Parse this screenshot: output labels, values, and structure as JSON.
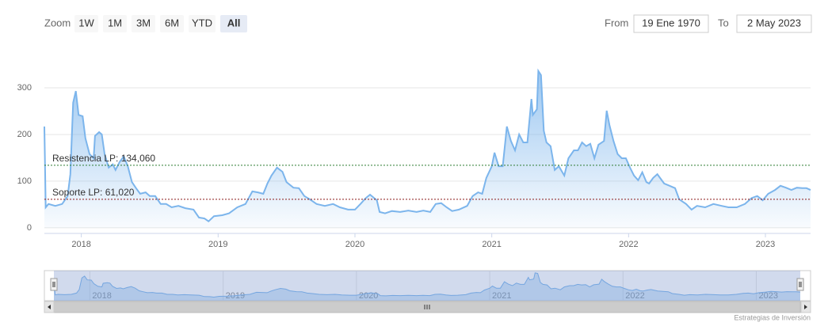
{
  "chart_data": {
    "type": "area",
    "color": "#7cb5ec",
    "range_selector": {
      "zoom_label": "Zoom",
      "buttons": [
        "1W",
        "1M",
        "3M",
        "6M",
        "YTD",
        "All"
      ],
      "selected": "All",
      "from_label": "From",
      "from_value": "19 Ene 1970",
      "to_label": "To",
      "to_value": "2 May 2023"
    },
    "annotations": [
      {
        "text": "Resistencia LP: 134,060",
        "value": 134.06,
        "color": "#2e7d32"
      },
      {
        "text": "Soporte LP: 61,020",
        "value": 61.02,
        "color": "#8b1a1a"
      }
    ],
    "credit": "Estrategias de Inversión",
    "xlim": [
      2017.73,
      2023.33
    ],
    "xticks": [
      2018,
      2019,
      2020,
      2021,
      2022,
      2023
    ],
    "ylim": [
      -12,
      344
    ],
    "yticks": [
      0,
      100,
      200,
      300
    ],
    "grid": true,
    "x": [
      2017.73,
      2017.74,
      2017.76,
      2017.81,
      2017.86,
      2017.9,
      2017.92,
      2017.94,
      2017.96,
      2017.98,
      2018.01,
      2018.03,
      2018.06,
      2018.09,
      2018.1,
      2018.13,
      2018.15,
      2018.17,
      2018.2,
      2018.23,
      2018.25,
      2018.28,
      2018.31,
      2018.34,
      2018.37,
      2018.4,
      2018.43,
      2018.47,
      2018.5,
      2018.54,
      2018.58,
      2018.62,
      2018.66,
      2018.71,
      2018.76,
      2018.82,
      2018.86,
      2018.9,
      2018.93,
      2018.97,
      2019.03,
      2019.08,
      2019.14,
      2019.2,
      2019.25,
      2019.29,
      2019.33,
      2019.36,
      2019.39,
      2019.43,
      2019.47,
      2019.5,
      2019.55,
      2019.59,
      2019.63,
      2019.67,
      2019.72,
      2019.78,
      2019.84,
      2019.89,
      2019.95,
      2020.0,
      2020.04,
      2020.08,
      2020.11,
      2020.16,
      2020.18,
      2020.22,
      2020.27,
      2020.33,
      2020.39,
      2020.45,
      2020.5,
      2020.55,
      2020.59,
      2020.63,
      2020.67,
      2020.71,
      2020.76,
      2020.82,
      2020.86,
      2020.9,
      2020.93,
      2020.96,
      2021.0,
      2021.02,
      2021.05,
      2021.08,
      2021.11,
      2021.14,
      2021.17,
      2021.2,
      2021.23,
      2021.26,
      2021.29,
      2021.3,
      2021.33,
      2021.34,
      2021.36,
      2021.38,
      2021.4,
      2021.43,
      2021.46,
      2021.49,
      2021.53,
      2021.56,
      2021.6,
      2021.63,
      2021.66,
      2021.69,
      2021.72,
      2021.75,
      2021.78,
      2021.82,
      2021.84,
      2021.86,
      2021.89,
      2021.92,
      2021.95,
      2021.98,
      2022.01,
      2022.04,
      2022.07,
      2022.1,
      2022.13,
      2022.15,
      2022.18,
      2022.21,
      2022.26,
      2022.3,
      2022.34,
      2022.37,
      2022.42,
      2022.46,
      2022.5,
      2022.56,
      2022.62,
      2022.68,
      2022.73,
      2022.79,
      2022.85,
      2022.9,
      2022.94,
      2022.98,
      2023.02,
      2023.07,
      2023.11,
      2023.15,
      2023.19,
      2023.23,
      2023.27,
      2023.3,
      2023.33
    ],
    "values": [
      217,
      44,
      51,
      47,
      51,
      68,
      115,
      268,
      293,
      242,
      239,
      192,
      158,
      149,
      197,
      205,
      200,
      158,
      129,
      136,
      124,
      141,
      153,
      132,
      98,
      85,
      73,
      76,
      68,
      68,
      51,
      51,
      44,
      47,
      42,
      39,
      22,
      20,
      14,
      25,
      27,
      31,
      44,
      51,
      78,
      76,
      73,
      95,
      112,
      129,
      120,
      98,
      86,
      85,
      68,
      61,
      51,
      47,
      51,
      44,
      39,
      39,
      51,
      64,
      71,
      59,
      34,
      31,
      36,
      34,
      37,
      34,
      37,
      34,
      51,
      53,
      44,
      36,
      39,
      47,
      68,
      76,
      73,
      107,
      132,
      161,
      132,
      132,
      217,
      186,
      166,
      200,
      183,
      183,
      276,
      242,
      254,
      336,
      327,
      208,
      183,
      175,
      124,
      132,
      112,
      149,
      166,
      166,
      183,
      175,
      180,
      149,
      178,
      186,
      251,
      220,
      186,
      158,
      149,
      149,
      129,
      112,
      102,
      119,
      98,
      95,
      107,
      115,
      95,
      90,
      85,
      61,
      51,
      39,
      47,
      44,
      51,
      47,
      44,
      44,
      51,
      64,
      68,
      59,
      73,
      81,
      90,
      86,
      81,
      86,
      85,
      85,
      81
    ]
  }
}
